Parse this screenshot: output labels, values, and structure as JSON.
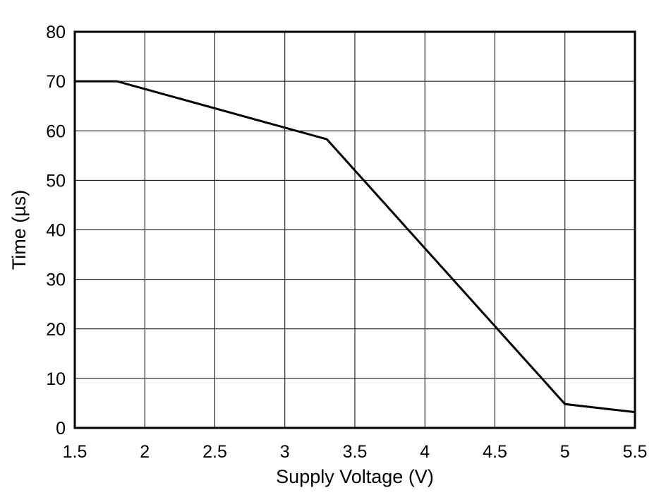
{
  "chart_data": {
    "type": "line",
    "title": "",
    "xlabel": "Supply Voltage (V)",
    "ylabel": "Time (µs)",
    "xlim": [
      1.5,
      5.5
    ],
    "ylim": [
      0,
      80
    ],
    "x_ticks": [
      "1.5",
      "2",
      "2.5",
      "3",
      "3.5",
      "4",
      "4.5",
      "5",
      "5.5"
    ],
    "y_ticks": [
      "0",
      "10",
      "20",
      "30",
      "40",
      "50",
      "60",
      "70",
      "80"
    ],
    "grid": true,
    "legend": "none",
    "series": [
      {
        "color": "#000000",
        "x": [
          1.5,
          1.8,
          3.3,
          5.0,
          5.5
        ],
        "y": [
          70,
          70,
          58.3,
          4.8,
          3.2
        ]
      }
    ]
  }
}
